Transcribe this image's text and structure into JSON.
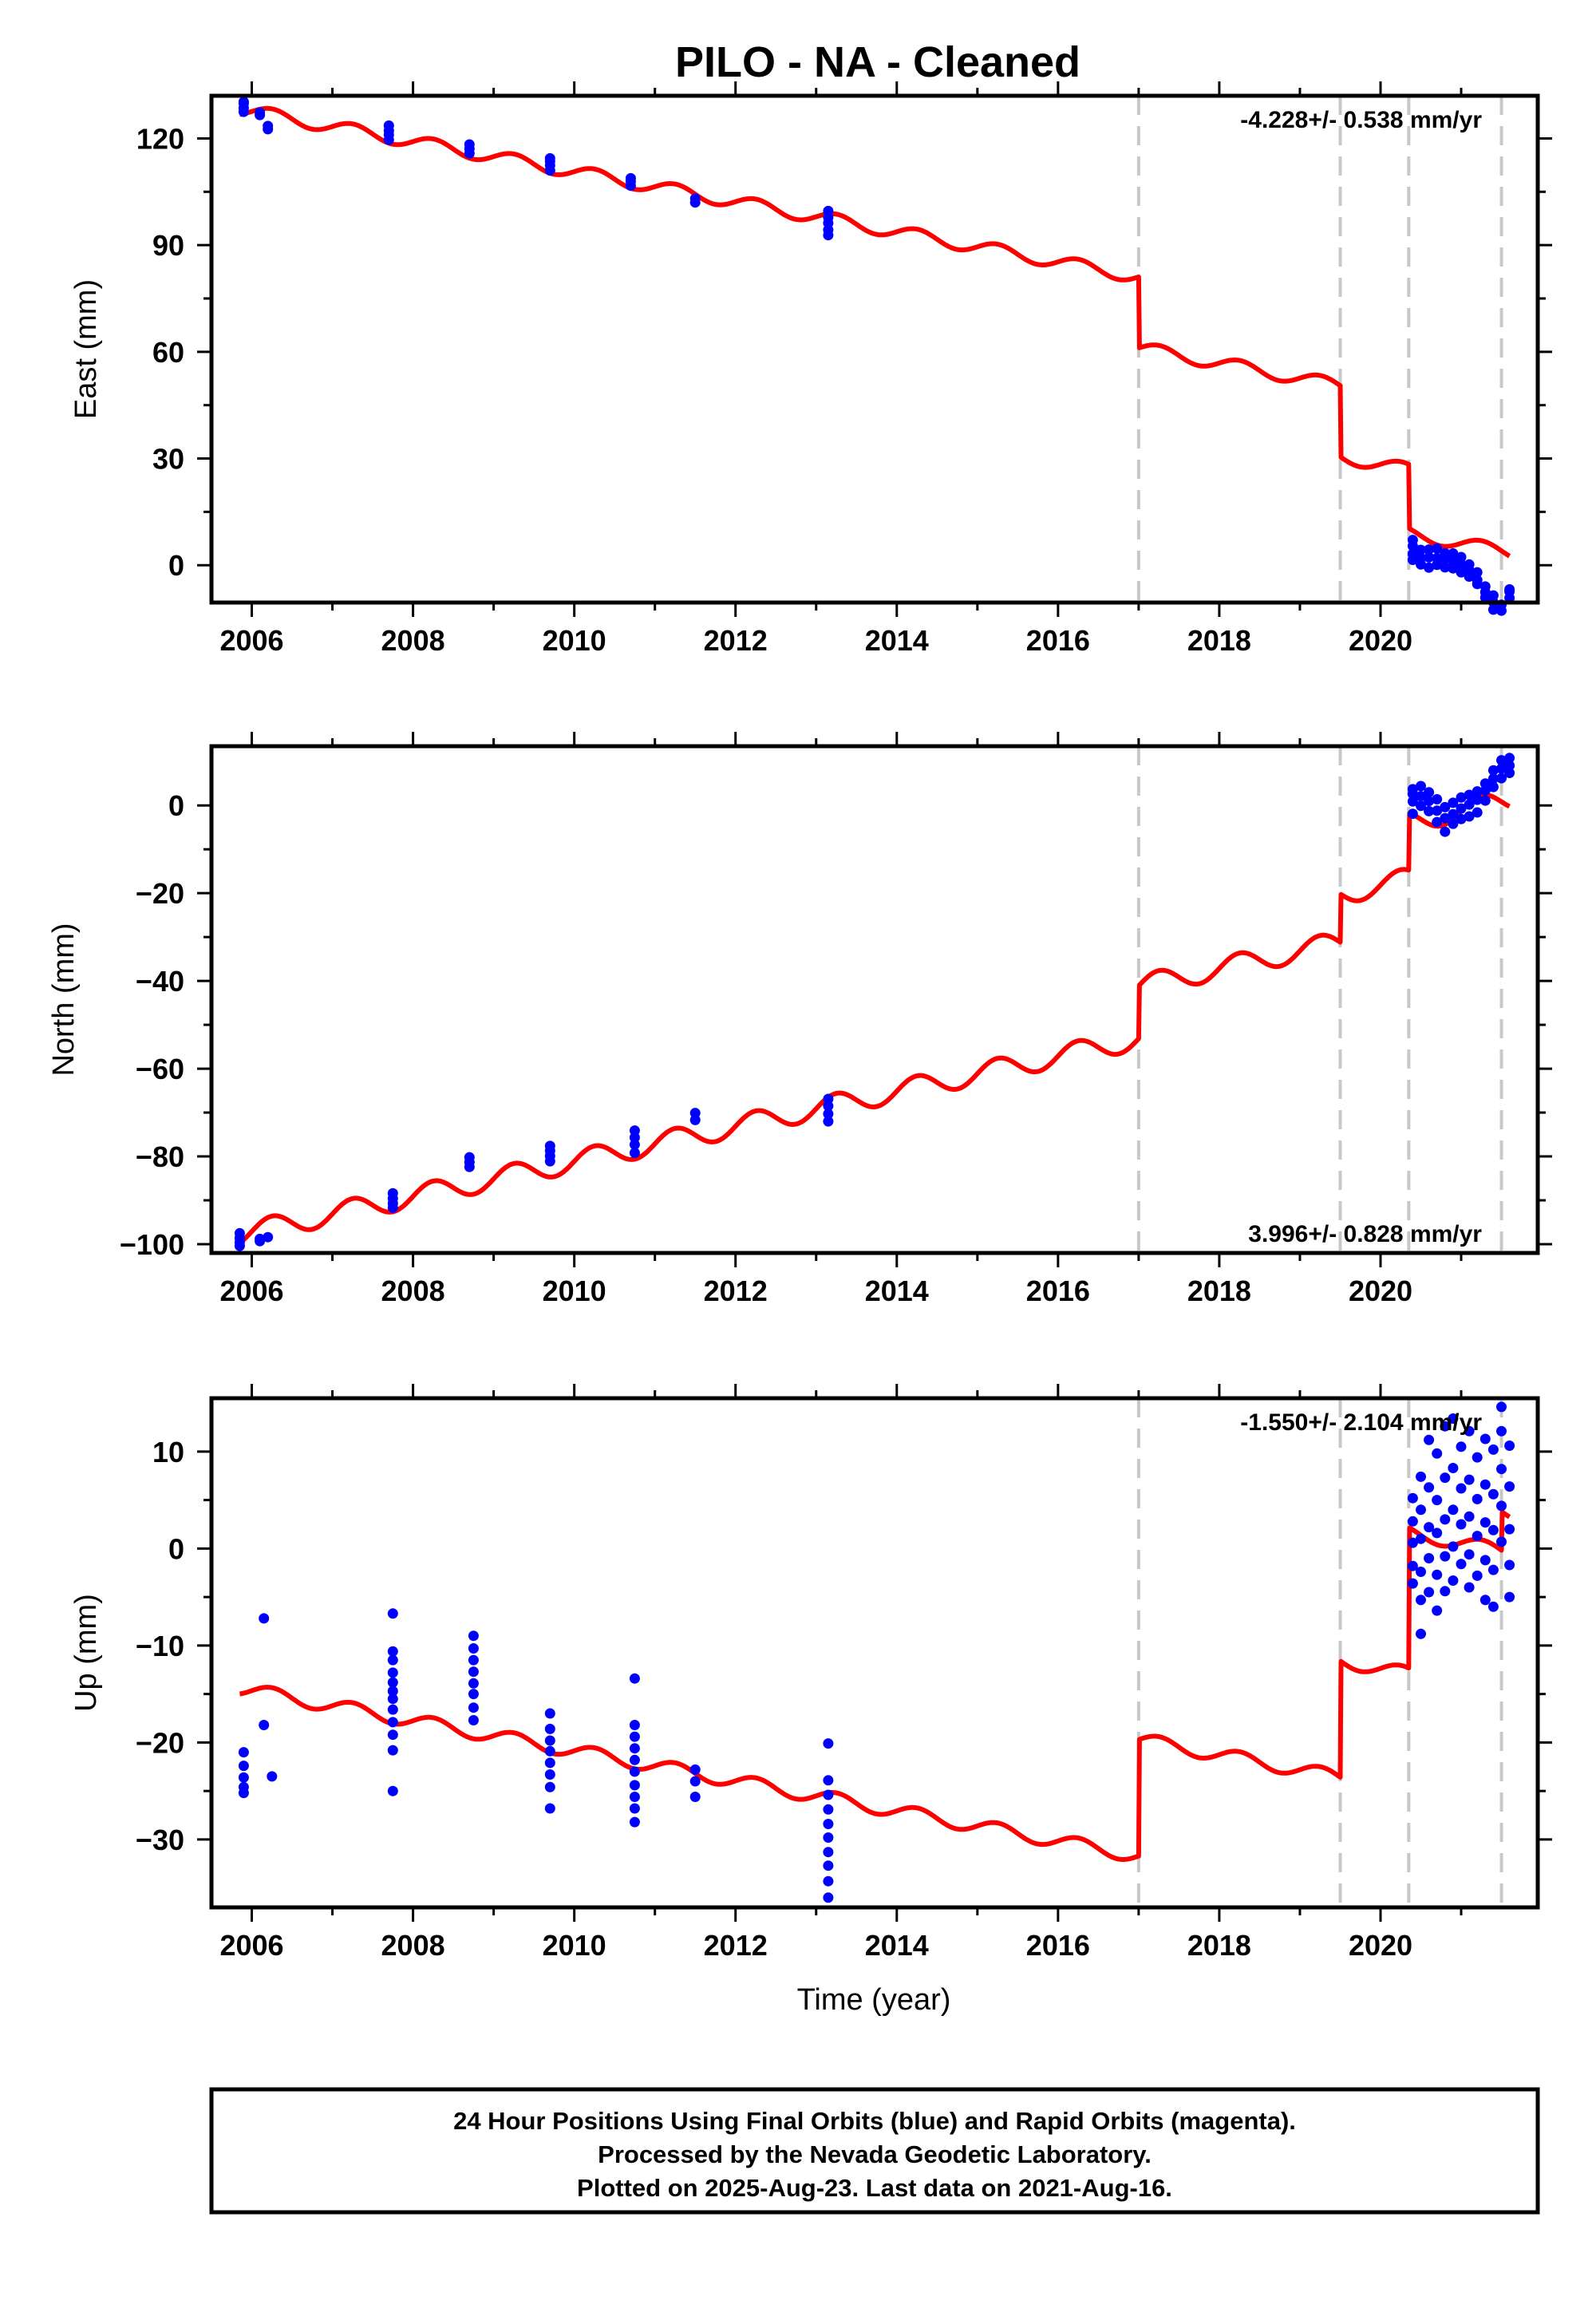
{
  "figure": {
    "title": "PILO  - NA - Cleaned",
    "footer": [
      "24 Hour Positions Using Final Orbits (blue) and Rapid Orbits (magenta).",
      "Processed by the Nevada Geodetic Laboratory.",
      "Plotted on 2025-Aug-23. Last data on 2021-Aug-16."
    ],
    "xlabel": "Time (year)",
    "colors": {
      "data": "#0000ff",
      "model": "#ff0000",
      "steps": "#c8c8c8"
    }
  },
  "chart_data": [
    {
      "type": "scatter",
      "component": "east",
      "ylabel": "East (mm)",
      "rate": "-4.228+/- 0.538 mm/yr",
      "xlim": [
        2005.5,
        2021.95
      ],
      "ylim": [
        -10.5,
        132
      ],
      "yticks": [
        0,
        30,
        60,
        90,
        120
      ],
      "xticks": [
        2006,
        2008,
        2010,
        2012,
        2014,
        2016,
        2018,
        2020
      ],
      "steps": [
        2017.0,
        2019.5,
        2020.35,
        2021.5
      ],
      "model": {
        "slope": -4.228,
        "anchor_year": 2005.9,
        "anchor_value": 128,
        "seasonal_amplitude": 1.8,
        "step_offsets": [
          -20,
          -20,
          -18,
          0
        ]
      },
      "observations": [
        {
          "year": 2005.9,
          "values": [
            127.5,
            128.6,
            129.8,
            130.3
          ]
        },
        {
          "year": 2006.1,
          "values": [
            126.6,
            127.3
          ]
        },
        {
          "year": 2006.2,
          "values": [
            122.6,
            123.5
          ]
        },
        {
          "year": 2007.7,
          "values": [
            119.6,
            121.0,
            122.2,
            123.6
          ]
        },
        {
          "year": 2008.7,
          "values": [
            115.8,
            117.1,
            118.3
          ]
        },
        {
          "year": 2009.7,
          "values": [
            111.0,
            112.4,
            113.6,
            114.4
          ]
        },
        {
          "year": 2010.7,
          "values": [
            106.7,
            107.9,
            108.8
          ]
        },
        {
          "year": 2011.5,
          "values": [
            102.0,
            103.1
          ]
        },
        {
          "year": 2013.15,
          "values": [
            92.8,
            94.3,
            96.2,
            97.8,
            99.6
          ]
        },
        {
          "year": 2020.4,
          "values": [
            7.1,
            5.4,
            3.2,
            1.5
          ]
        },
        {
          "year": 2020.5,
          "values": [
            4.3,
            2.0,
            0.2
          ]
        },
        {
          "year": 2020.6,
          "values": [
            4.4,
            2.2,
            -0.7
          ]
        },
        {
          "year": 2020.7,
          "values": [
            4.7,
            2.0,
            0.1
          ]
        },
        {
          "year": 2020.8,
          "values": [
            3.4,
            1.8,
            -0.6
          ]
        },
        {
          "year": 2020.9,
          "values": [
            3.3,
            1.2,
            -0.9
          ]
        },
        {
          "year": 2021.0,
          "values": [
            2.3,
            0.3,
            -2.0
          ]
        },
        {
          "year": 2021.1,
          "values": [
            0.2,
            -1.4,
            -3.2
          ]
        },
        {
          "year": 2021.2,
          "values": [
            -2.0,
            -4.2,
            -5.3
          ]
        },
        {
          "year": 2021.3,
          "values": [
            -6.0,
            -7.6,
            -9.1
          ]
        },
        {
          "year": 2021.4,
          "values": [
            -8.5,
            -10.4,
            -12.5
          ]
        },
        {
          "year": 2021.5,
          "values": [
            -11.1,
            -12.8
          ]
        },
        {
          "year": 2021.6,
          "values": [
            -6.8,
            -7.4,
            -9.2
          ]
        }
      ]
    },
    {
      "type": "scatter",
      "component": "north",
      "ylabel": "North (mm)",
      "rate": "3.996+/- 0.828 mm/yr",
      "xlim": [
        2005.5,
        2021.95
      ],
      "ylim": [
        -102,
        13.5
      ],
      "yticks": [
        -100,
        -80,
        -60,
        -40,
        -20,
        0
      ],
      "xticks": [
        2006,
        2008,
        2010,
        2012,
        2014,
        2016,
        2018,
        2020
      ],
      "steps": [
        2017.0,
        2019.5,
        2020.35,
        2021.5
      ],
      "model": {
        "slope": 3.996,
        "anchor_year": 2005.9,
        "anchor_value": -97.5,
        "seasonal_amplitude": 2.5,
        "step_offsets": [
          12,
          11,
          13,
          0
        ]
      },
      "observations": [
        {
          "year": 2005.85,
          "values": [
            -97.5,
            -98.6,
            -99.6,
            -100.4
          ]
        },
        {
          "year": 2006.1,
          "values": [
            -99.3,
            -98.8
          ]
        },
        {
          "year": 2006.2,
          "values": [
            -98.4
          ]
        },
        {
          "year": 2007.75,
          "values": [
            -88.4,
            -89.6,
            -90.7,
            -91.7
          ]
        },
        {
          "year": 2008.7,
          "values": [
            -80.2,
            -81.3,
            -82.4
          ]
        },
        {
          "year": 2009.7,
          "values": [
            -77.6,
            -78.7,
            -79.9,
            -81.1
          ]
        },
        {
          "year": 2010.75,
          "values": [
            -74.1,
            -75.7,
            -77.3,
            -79.2
          ]
        },
        {
          "year": 2011.5,
          "values": [
            -70.1,
            -71.7
          ]
        },
        {
          "year": 2013.15,
          "values": [
            -66.9,
            -68.5,
            -70.3,
            -72.0
          ]
        },
        {
          "year": 2020.4,
          "values": [
            -1.9,
            0.9,
            2.6,
            3.7
          ]
        },
        {
          "year": 2020.5,
          "values": [
            -0.1,
            2.1,
            4.4
          ]
        },
        {
          "year": 2020.6,
          "values": [
            -1.3,
            1.0,
            3.0
          ]
        },
        {
          "year": 2020.7,
          "values": [
            -3.8,
            -1.2,
            1.4
          ]
        },
        {
          "year": 2020.8,
          "values": [
            -6.0,
            -2.9,
            -0.4
          ]
        },
        {
          "year": 2020.9,
          "values": [
            -4.2,
            -2.0,
            0.6
          ]
        },
        {
          "year": 2021.0,
          "values": [
            -3.1,
            -0.7,
            1.8
          ]
        },
        {
          "year": 2021.1,
          "values": [
            -2.5,
            0.2,
            2.4
          ]
        },
        {
          "year": 2021.2,
          "values": [
            -1.6,
            1.3,
            3.2
          ]
        },
        {
          "year": 2021.3,
          "values": [
            1.1,
            3.4,
            5.0
          ]
        },
        {
          "year": 2021.4,
          "values": [
            4.2,
            6.1,
            8.0
          ]
        },
        {
          "year": 2021.5,
          "values": [
            6.2,
            8.4,
            10.3
          ]
        },
        {
          "year": 2021.6,
          "values": [
            7.4,
            9.1,
            10.8
          ]
        }
      ]
    },
    {
      "type": "scatter",
      "component": "up",
      "ylabel": "Up (mm)",
      "rate": "-1.550+/- 2.104 mm/yr",
      "xlim": [
        2005.5,
        2021.95
      ],
      "ylim": [
        -37,
        15.5
      ],
      "yticks": [
        -30,
        -20,
        -10,
        0,
        10
      ],
      "xticks": [
        2006,
        2008,
        2010,
        2012,
        2014,
        2016,
        2018,
        2020
      ],
      "steps": [
        2017.0,
        2019.5,
        2020.35,
        2021.5
      ],
      "model": {
        "slope": -1.55,
        "anchor_year": 2005.9,
        "anchor_value": -14.5,
        "seasonal_amplitude": 0.7,
        "step_offsets": [
          12,
          12,
          14.5,
          4
        ]
      },
      "observations": [
        {
          "year": 2005.9,
          "values": [
            -21.0,
            -22.4,
            -23.6,
            -24.6,
            -25.2
          ]
        },
        {
          "year": 2006.15,
          "values": [
            -7.2,
            -18.2
          ]
        },
        {
          "year": 2006.25,
          "values": [
            -23.5
          ]
        },
        {
          "year": 2007.75,
          "values": [
            -6.7,
            -10.6,
            -11.5,
            -12.8,
            -13.8,
            -14.7,
            -15.5,
            -16.6,
            -17.9,
            -19.2,
            -20.8,
            -25.0
          ]
        },
        {
          "year": 2008.75,
          "values": [
            -9.0,
            -10.3,
            -11.5,
            -12.7,
            -13.9,
            -15.0,
            -16.4,
            -17.7
          ]
        },
        {
          "year": 2009.7,
          "values": [
            -17.0,
            -18.6,
            -19.8,
            -20.9,
            -22.1,
            -23.3,
            -24.6,
            -26.8
          ]
        },
        {
          "year": 2010.75,
          "values": [
            -13.4,
            -18.2,
            -19.4,
            -20.6,
            -21.8,
            -23.0,
            -24.4,
            -25.6,
            -26.8,
            -28.2
          ]
        },
        {
          "year": 2011.5,
          "values": [
            -22.8,
            -24.0,
            -25.6
          ]
        },
        {
          "year": 2013.15,
          "values": [
            -20.1,
            -23.9,
            -25.4,
            -26.9,
            -28.4,
            -29.8,
            -31.3,
            -32.7,
            -34.3,
            -36.0
          ]
        },
        {
          "year": 2020.4,
          "values": [
            5.2,
            2.8,
            0.6,
            -1.8,
            -3.6
          ]
        },
        {
          "year": 2020.5,
          "values": [
            7.4,
            4.0,
            1.0,
            -2.4,
            -5.3,
            -8.8
          ]
        },
        {
          "year": 2020.6,
          "values": [
            11.2,
            6.3,
            2.2,
            -1.0,
            -4.5
          ]
        },
        {
          "year": 2020.7,
          "values": [
            9.8,
            5.0,
            1.6,
            -2.7,
            -6.4
          ]
        },
        {
          "year": 2020.8,
          "values": [
            12.6,
            7.3,
            3.0,
            -0.8,
            -4.4
          ]
        },
        {
          "year": 2020.9,
          "values": [
            13.4,
            8.3,
            4.0,
            0.2,
            -3.3
          ]
        },
        {
          "year": 2021.0,
          "values": [
            10.5,
            6.2,
            2.5,
            -1.6
          ]
        },
        {
          "year": 2021.1,
          "values": [
            12.1,
            7.1,
            3.3,
            -0.6,
            -4.0
          ]
        },
        {
          "year": 2021.2,
          "values": [
            9.4,
            5.1,
            1.3,
            -2.8
          ]
        },
        {
          "year": 2021.3,
          "values": [
            11.3,
            6.6,
            2.7,
            -1.2,
            -5.3
          ]
        },
        {
          "year": 2021.4,
          "values": [
            10.2,
            5.6,
            1.9,
            -2.2,
            -6.0
          ]
        },
        {
          "year": 2021.5,
          "values": [
            14.6,
            12.1,
            8.2,
            4.4,
            0.7
          ]
        },
        {
          "year": 2021.6,
          "values": [
            10.6,
            6.4,
            2.0,
            -1.7,
            -5.0
          ]
        }
      ]
    }
  ]
}
